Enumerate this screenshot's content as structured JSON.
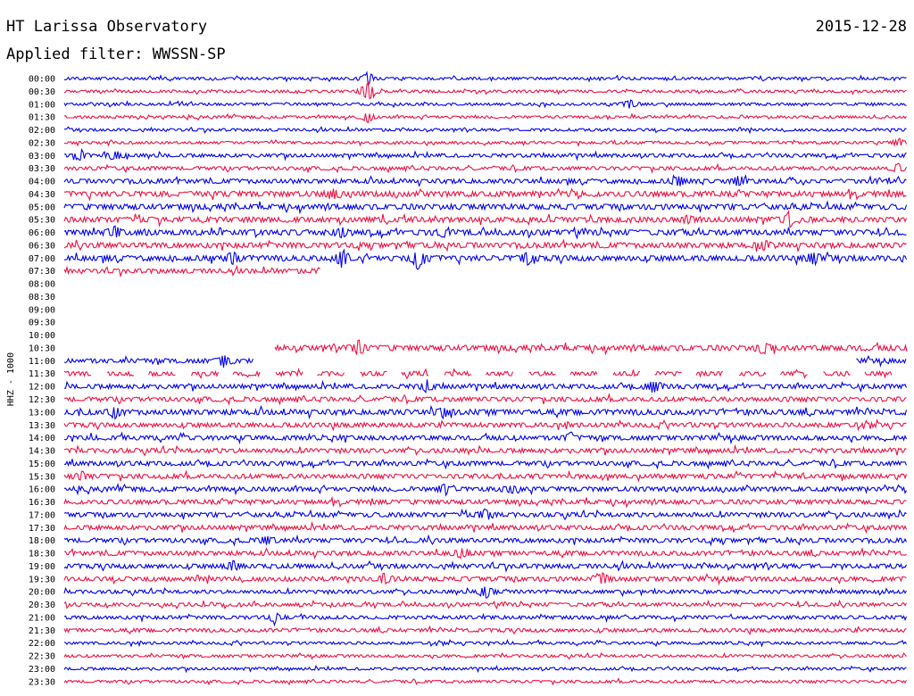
{
  "header": {
    "station": "HT Larissa Observatory",
    "date": "2015-12-28",
    "filter": "Applied filter: WWSSN-SP"
  },
  "chart_data": {
    "type": "line",
    "title": "HT Larissa Observatory",
    "date": "2015-12-28",
    "filter": "WWSSN-SP",
    "ylabel": "HHZ - 1000",
    "row_labels": [
      "00:00",
      "00:30",
      "01:00",
      "01:30",
      "02:00",
      "02:30",
      "03:00",
      "03:30",
      "04:00",
      "04:30",
      "05:00",
      "05:30",
      "06:00",
      "06:30",
      "07:00",
      "07:30",
      "08:00",
      "08:30",
      "09:00",
      "09:30",
      "10:00",
      "10:30",
      "11:00",
      "11:30",
      "12:00",
      "12:30",
      "13:00",
      "13:30",
      "14:00",
      "14:30",
      "15:00",
      "15:30",
      "16:00",
      "16:30",
      "17:00",
      "17:30",
      "18:00",
      "18:30",
      "19:00",
      "19:30",
      "20:00",
      "20:30",
      "21:00",
      "21:30",
      "22:00",
      "22:30",
      "23:00",
      "23:30"
    ],
    "row_minutes": 30,
    "colors": [
      "#0000ee",
      "#ee1144"
    ],
    "segments": [
      {
        "row": 0,
        "start": 0,
        "end": 1,
        "amp": 3
      },
      {
        "row": 1,
        "start": 0,
        "end": 1,
        "amp": 3
      },
      {
        "row": 2,
        "start": 0,
        "end": 1,
        "amp": 3
      },
      {
        "row": 3,
        "start": 0,
        "end": 1,
        "amp": 3
      },
      {
        "row": 4,
        "start": 0,
        "end": 1,
        "amp": 3
      },
      {
        "row": 5,
        "start": 0,
        "end": 1,
        "amp": 3
      },
      {
        "row": 6,
        "start": 0,
        "end": 1,
        "amp": 4
      },
      {
        "row": 7,
        "start": 0,
        "end": 1,
        "amp": 4
      },
      {
        "row": 8,
        "start": 0,
        "end": 1,
        "amp": 5
      },
      {
        "row": 9,
        "start": 0,
        "end": 1,
        "amp": 6
      },
      {
        "row": 10,
        "start": 0,
        "end": 1,
        "amp": 6
      },
      {
        "row": 11,
        "start": 0,
        "end": 1,
        "amp": 6
      },
      {
        "row": 12,
        "start": 0,
        "end": 1,
        "amp": 6
      },
      {
        "row": 13,
        "start": 0,
        "end": 1,
        "amp": 6
      },
      {
        "row": 14,
        "start": 0,
        "end": 1,
        "amp": 6
      },
      {
        "row": 15,
        "start": 0,
        "end": 0.305,
        "amp": 5
      },
      {
        "row": 21,
        "start": 0.25,
        "end": 1,
        "amp": 6
      },
      {
        "row": 22,
        "start": 0,
        "end": 0.225,
        "amp": 5
      },
      {
        "row": 22,
        "start": 0.94,
        "end": 1,
        "amp": 5
      },
      {
        "row": 23,
        "start": 0,
        "end": 1,
        "amp": 5,
        "dashed": true
      },
      {
        "row": 24,
        "start": 0,
        "end": 1,
        "amp": 5
      },
      {
        "row": 25,
        "start": 0,
        "end": 1,
        "amp": 5
      },
      {
        "row": 26,
        "start": 0,
        "end": 1,
        "amp": 6
      },
      {
        "row": 27,
        "start": 0,
        "end": 1,
        "amp": 5
      },
      {
        "row": 28,
        "start": 0,
        "end": 1,
        "amp": 5
      },
      {
        "row": 29,
        "start": 0,
        "end": 1,
        "amp": 5
      },
      {
        "row": 30,
        "start": 0,
        "end": 1,
        "amp": 5
      },
      {
        "row": 31,
        "start": 0,
        "end": 1,
        "amp": 5
      },
      {
        "row": 32,
        "start": 0,
        "end": 1,
        "amp": 5
      },
      {
        "row": 33,
        "start": 0,
        "end": 1,
        "amp": 5
      },
      {
        "row": 34,
        "start": 0,
        "end": 1,
        "amp": 5
      },
      {
        "row": 35,
        "start": 0,
        "end": 1,
        "amp": 5
      },
      {
        "row": 36,
        "start": 0,
        "end": 1,
        "amp": 5
      },
      {
        "row": 37,
        "start": 0,
        "end": 1,
        "amp": 5
      },
      {
        "row": 38,
        "start": 0,
        "end": 1,
        "amp": 5
      },
      {
        "row": 39,
        "start": 0,
        "end": 1,
        "amp": 5
      },
      {
        "row": 40,
        "start": 0,
        "end": 1,
        "amp": 4
      },
      {
        "row": 41,
        "start": 0,
        "end": 1,
        "amp": 4
      },
      {
        "row": 42,
        "start": 0,
        "end": 1,
        "amp": 4
      },
      {
        "row": 43,
        "start": 0,
        "end": 1,
        "amp": 4
      },
      {
        "row": 44,
        "start": 0,
        "end": 1,
        "amp": 3
      },
      {
        "row": 45,
        "start": 0,
        "end": 1,
        "amp": 3
      },
      {
        "row": 46,
        "start": 0,
        "end": 1,
        "amp": 3
      },
      {
        "row": 47,
        "start": 0,
        "end": 1,
        "amp": 3
      }
    ],
    "events": [
      {
        "row": 0,
        "x": 0.36,
        "amp": 14
      },
      {
        "row": 1,
        "x": 0.36,
        "amp": 30
      },
      {
        "row": 2,
        "x": 0.67,
        "amp": 12
      },
      {
        "row": 3,
        "x": 0.36,
        "amp": 14
      },
      {
        "row": 6,
        "x": 0.02,
        "amp": 12
      },
      {
        "row": 6,
        "x": 0.06,
        "amp": 12
      },
      {
        "row": 5,
        "x": 0.99,
        "amp": 10
      },
      {
        "row": 7,
        "x": 0.99,
        "amp": 10
      },
      {
        "row": 8,
        "x": 0.73,
        "amp": 12
      },
      {
        "row": 8,
        "x": 0.8,
        "amp": 12
      },
      {
        "row": 9,
        "x": 0.32,
        "amp": 10
      },
      {
        "row": 11,
        "x": 0.74,
        "amp": 8
      },
      {
        "row": 11,
        "x": 0.86,
        "amp": 16
      },
      {
        "row": 12,
        "x": 0.06,
        "amp": 12
      },
      {
        "row": 12,
        "x": 0.33,
        "amp": 10
      },
      {
        "row": 12,
        "x": 0.45,
        "amp": 8
      },
      {
        "row": 13,
        "x": 0.83,
        "amp": 10
      },
      {
        "row": 14,
        "x": 0.2,
        "amp": 14
      },
      {
        "row": 14,
        "x": 0.33,
        "amp": 22
      },
      {
        "row": 14,
        "x": 0.42,
        "amp": 28
      },
      {
        "row": 14,
        "x": 0.55,
        "amp": 12
      },
      {
        "row": 14,
        "x": 0.89,
        "amp": 14
      },
      {
        "row": 21,
        "x": 0.35,
        "amp": 16
      },
      {
        "row": 21,
        "x": 0.83,
        "amp": 12
      },
      {
        "row": 22,
        "x": 0.19,
        "amp": 14
      },
      {
        "row": 22,
        "x": 0.91,
        "amp": 18
      },
      {
        "row": 24,
        "x": 0.43,
        "amp": 14
      },
      {
        "row": 24,
        "x": 0.7,
        "amp": 14
      },
      {
        "row": 26,
        "x": 0.06,
        "amp": 12
      },
      {
        "row": 26,
        "x": 0.45,
        "amp": 10
      },
      {
        "row": 28,
        "x": 0.6,
        "amp": 10
      },
      {
        "row": 31,
        "x": 0.02,
        "amp": 10
      },
      {
        "row": 32,
        "x": 0.45,
        "amp": 12
      },
      {
        "row": 32,
        "x": 0.53,
        "amp": 10
      },
      {
        "row": 34,
        "x": 0.5,
        "amp": 12
      },
      {
        "row": 36,
        "x": 0.24,
        "amp": 10
      },
      {
        "row": 37,
        "x": 0.47,
        "amp": 12
      },
      {
        "row": 38,
        "x": 0.2,
        "amp": 12
      },
      {
        "row": 39,
        "x": 0.38,
        "amp": 14
      },
      {
        "row": 39,
        "x": 0.64,
        "amp": 14
      },
      {
        "row": 40,
        "x": 0.5,
        "amp": 18
      },
      {
        "row": 42,
        "x": 0.25,
        "amp": 12
      }
    ]
  }
}
